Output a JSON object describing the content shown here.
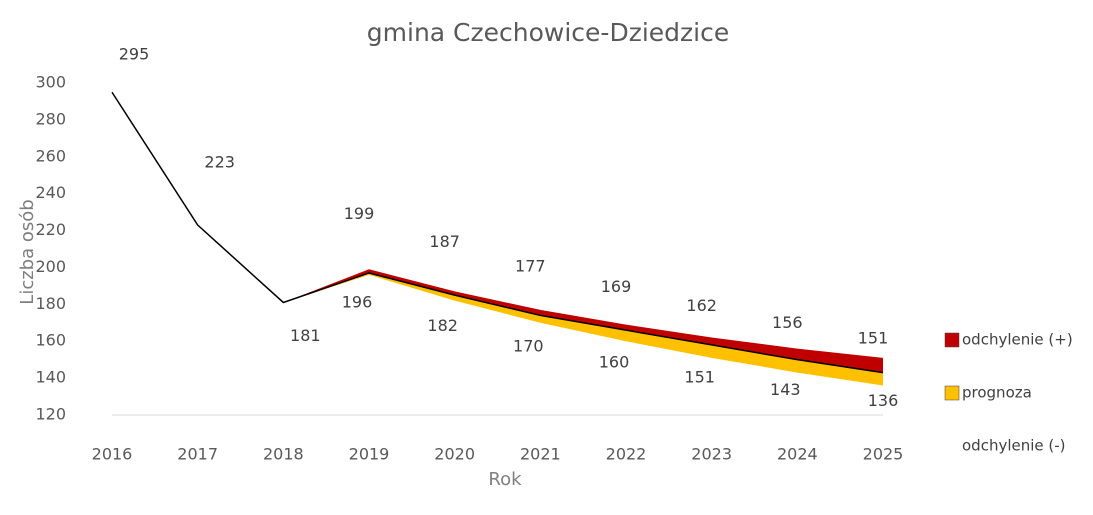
{
  "chart_data": {
    "type": "band-line",
    "title": "gmina Czechowice-Dziedzice",
    "x_label": "Rok",
    "y_label": "Liczba osób",
    "categories": [
      "2016",
      "2017",
      "2018",
      "2019",
      "2020",
      "2021",
      "2022",
      "2023",
      "2024",
      "2025"
    ],
    "line": {
      "color": "#000000",
      "values": [
        295,
        223,
        181,
        197,
        185,
        174,
        166,
        158,
        150,
        143
      ]
    },
    "series": [
      {
        "name": "odchylenie (+)",
        "color": "#c00000",
        "values": [
          null,
          null,
          null,
          199,
          187,
          177,
          169,
          162,
          156,
          151
        ]
      },
      {
        "name": "prognoza",
        "color": "#ffc000",
        "values": [
          null,
          null,
          null,
          196,
          182,
          170,
          160,
          151,
          143,
          136
        ]
      },
      {
        "name": "odchylenie (-)",
        "color": null,
        "values": [
          null,
          null,
          null,
          null,
          null,
          null,
          null,
          null,
          null,
          null
        ]
      }
    ],
    "ylim": [
      120,
      300
    ],
    "yticks": [
      120,
      140,
      160,
      180,
      200,
      220,
      240,
      260,
      280,
      300
    ],
    "grid": false
  }
}
